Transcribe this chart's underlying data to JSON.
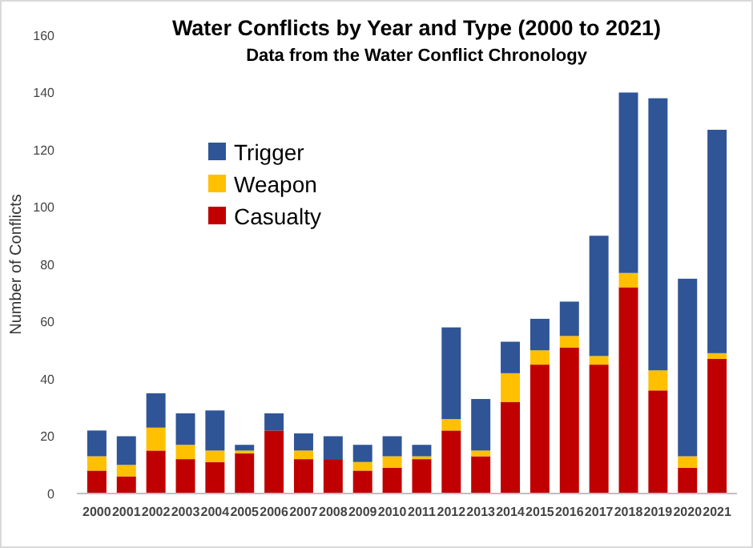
{
  "chart_data": {
    "type": "bar",
    "title": "Water Conflicts by Year and Type (2000 to 2021)",
    "subtitle": "Data from the Water Conflict Chronology",
    "ylabel": "Number of Conflicts",
    "stacked": true,
    "legend": "top left",
    "grid": false,
    "categories": [
      "2000",
      "2001",
      "2002",
      "2003",
      "2004",
      "2005",
      "2006",
      "2007",
      "2008",
      "2009",
      "2010",
      "2011",
      "2012",
      "2013",
      "2014",
      "2015",
      "2016",
      "2017",
      "2018",
      "2019",
      "2020",
      "2021"
    ],
    "series": [
      {
        "name": "Casualty",
        "color": "#c00000",
        "values": [
          8,
          6,
          15,
          12,
          11,
          14,
          22,
          12,
          12,
          8,
          9,
          12,
          22,
          13,
          32,
          45,
          51,
          45,
          72,
          36,
          9,
          47
        ]
      },
      {
        "name": "Weapon",
        "color": "#ffc000",
        "values": [
          5,
          4,
          8,
          5,
          4,
          1,
          0,
          3,
          0,
          3,
          4,
          1,
          4,
          2,
          10,
          5,
          4,
          3,
          5,
          7,
          4,
          2
        ]
      },
      {
        "name": "Trigger",
        "color": "#2f5597",
        "values": [
          9,
          10,
          12,
          11,
          14,
          2,
          6,
          6,
          8,
          6,
          7,
          4,
          32,
          18,
          11,
          11,
          12,
          42,
          63,
          95,
          62,
          78
        ]
      }
    ],
    "ylim": [
      0,
      160
    ],
    "yticks": [
      0,
      20,
      40,
      60,
      80,
      100,
      120,
      140,
      160
    ]
  }
}
